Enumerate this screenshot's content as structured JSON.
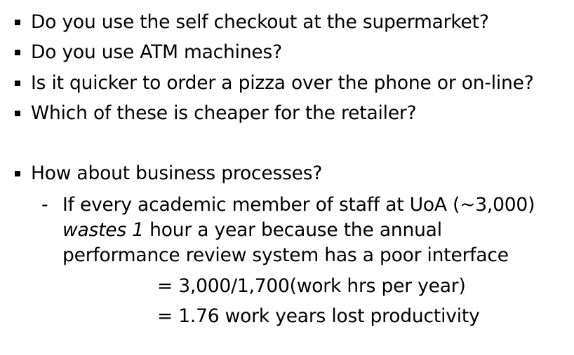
{
  "bullets": [
    "Do you use the self checkout at the supermarket?",
    "Do you use ATM machines?",
    "Is it quicker to order a pizza over the phone or on-line?",
    "Which of these is cheaper for the retailer?",
    "How about business processes?"
  ],
  "sub": {
    "dash": "-",
    "line1": "If every academic member of staff at UoA (~3,000)",
    "line2_italic": "wastes 1",
    "line2_rest": " hour a year because the annual",
    "line3": "performance review system has a poor interface"
  },
  "calc": [
    "= 3,000/1,700(work hrs per year)",
    "= 1.76 work years lost productivity"
  ]
}
